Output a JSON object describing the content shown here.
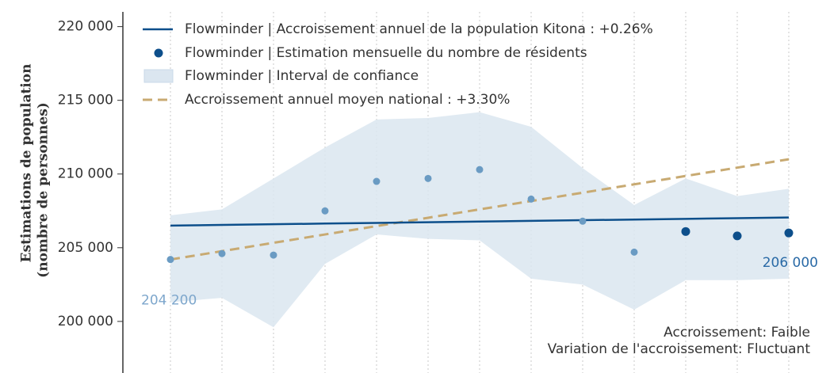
{
  "chart_data": {
    "type": "line",
    "y_label": [
      "Estimations de population",
      "(nombre de personnes)"
    ],
    "categories": [
      null,
      null,
      null,
      null,
      null,
      null,
      null,
      null,
      null,
      null,
      null,
      null,
      null
    ],
    "ylim": [
      196500,
      221000
    ],
    "yticks": [
      {
        "value": 200000,
        "label": "200 000"
      },
      {
        "value": 205000,
        "label": "205 000"
      },
      {
        "value": 210000,
        "label": "210 000"
      },
      {
        "value": 215000,
        "label": "215 000"
      },
      {
        "value": 220000,
        "label": "220 000"
      }
    ],
    "series": [
      {
        "name": "Flowminder | Accroissement annuel de la population Kitona : +0.26%",
        "type": "line",
        "color": "#0d4f8b",
        "values": [
          206500,
          206546,
          206592,
          206638,
          206683,
          206729,
          206775,
          206821,
          206867,
          206913,
          206958,
          207004,
          207050
        ]
      },
      {
        "name": "Flowminder | Estimation mensuelle du nombre de résidents",
        "type": "scatter",
        "color": "#6a9bc3",
        "highlight_color": "#0d4f8b",
        "highlight_from": 10,
        "values": [
          204200,
          204600,
          204500,
          207500,
          209500,
          209700,
          210300,
          208300,
          206800,
          204700,
          206100,
          205800,
          206000
        ],
        "value_labels": [
          "204 200",
          null,
          null,
          null,
          null,
          null,
          null,
          null,
          null,
          null,
          null,
          null,
          "206 000"
        ]
      },
      {
        "name": "Flowminder | Interval de confiance",
        "type": "band",
        "color": "#dbe6f0",
        "upper": [
          207200,
          207600,
          209700,
          211800,
          213700,
          213800,
          214200,
          213200,
          210400,
          207900,
          209700,
          208500,
          209000
        ],
        "lower": [
          201300,
          201600,
          199600,
          203900,
          205900,
          205600,
          205500,
          202900,
          202500,
          200800,
          202800,
          202800,
          202900
        ]
      },
      {
        "name": "Accroissement annuel moyen national : +3.30%",
        "type": "dashed",
        "color": "#c8aa72",
        "values": [
          204200,
          204767,
          205333,
          205900,
          206467,
          207033,
          207600,
          208167,
          208733,
          209300,
          209867,
          210433,
          211000
        ]
      }
    ],
    "annotations": [
      "Accroissement: Faible",
      "Variation de l'accroissement: Fluctuant"
    ]
  }
}
